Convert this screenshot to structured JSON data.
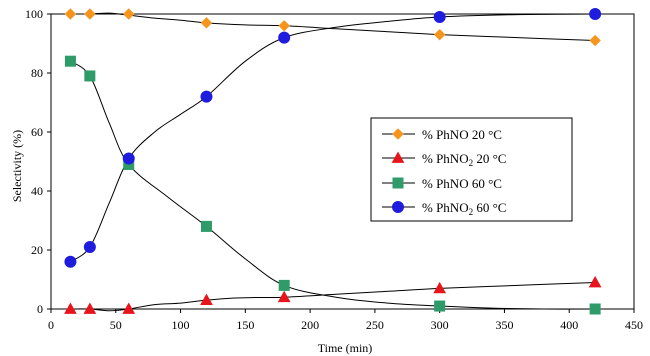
{
  "chart_data": {
    "type": "line",
    "title": "",
    "xlabel": "Time (min)",
    "ylabel": "Selectivity (%)",
    "xlim": [
      0,
      450
    ],
    "ylim": [
      0,
      100
    ],
    "xticks": [
      0,
      50,
      100,
      150,
      200,
      250,
      300,
      350,
      400,
      450
    ],
    "yticks": [
      0,
      20,
      40,
      60,
      80,
      100
    ],
    "grid": false,
    "legend": {
      "placement": "center-right",
      "entries": [
        {
          "prefix": "% PhNO",
          "sub": "",
          "suffix": " 20 °C"
        },
        {
          "prefix": "% PhNO",
          "sub": "2",
          "suffix": " 20 °C"
        },
        {
          "prefix": "% PhNO",
          "sub": "",
          "suffix": " 60 °C"
        },
        {
          "prefix": "% PhNO",
          "sub": "2",
          "suffix": " 60 °C"
        }
      ]
    },
    "series": [
      {
        "name": "% PhNO 20 °C",
        "marker": "diamond",
        "color": "#f7941d",
        "points": [
          [
            15,
            100
          ],
          [
            30,
            100
          ],
          [
            60,
            100
          ],
          [
            120,
            97
          ],
          [
            180,
            96
          ],
          [
            300,
            93
          ],
          [
            420,
            91
          ]
        ],
        "curve": [
          [
            15,
            100
          ],
          [
            30,
            100
          ],
          [
            45,
            100.3
          ],
          [
            60,
            99.6
          ],
          [
            80,
            98.6
          ],
          [
            100,
            97.9
          ],
          [
            120,
            97
          ],
          [
            150,
            96.3
          ],
          [
            180,
            96
          ],
          [
            220,
            95
          ],
          [
            260,
            94
          ],
          [
            300,
            93
          ],
          [
            360,
            92
          ],
          [
            420,
            91
          ]
        ]
      },
      {
        "name": "% PhNO2 20 °C",
        "marker": "triangle",
        "color": "#e8141c",
        "points": [
          [
            15,
            0
          ],
          [
            30,
            0
          ],
          [
            60,
            0
          ],
          [
            120,
            3
          ],
          [
            180,
            4
          ],
          [
            300,
            7
          ],
          [
            420,
            9
          ]
        ],
        "curve": [
          [
            15,
            0
          ],
          [
            30,
            0
          ],
          [
            45,
            -0.6
          ],
          [
            60,
            0
          ],
          [
            80,
            1.5
          ],
          [
            100,
            2
          ],
          [
            120,
            3
          ],
          [
            140,
            3.7
          ],
          [
            160,
            3.9
          ],
          [
            180,
            4
          ],
          [
            220,
            5
          ],
          [
            260,
            6
          ],
          [
            300,
            7
          ],
          [
            360,
            8
          ],
          [
            420,
            9
          ]
        ]
      },
      {
        "name": "% PhNO 60 °C",
        "marker": "square",
        "color": "#2e9b68",
        "points": [
          [
            15,
            84
          ],
          [
            30,
            79
          ],
          [
            60,
            49
          ],
          [
            120,
            28
          ],
          [
            180,
            8
          ],
          [
            300,
            1
          ],
          [
            420,
            0
          ]
        ],
        "curve": [
          [
            15,
            84
          ],
          [
            30,
            79
          ],
          [
            45,
            63
          ],
          [
            60,
            49
          ],
          [
            90,
            38
          ],
          [
            120,
            28
          ],
          [
            150,
            17
          ],
          [
            180,
            8
          ],
          [
            220,
            4
          ],
          [
            260,
            2
          ],
          [
            300,
            1
          ],
          [
            340,
            0.3
          ],
          [
            380,
            0
          ],
          [
            420,
            0
          ]
        ]
      },
      {
        "name": "% PhNO2 60 °C",
        "marker": "circle",
        "color": "#1f1ddd",
        "points": [
          [
            15,
            16
          ],
          [
            30,
            21
          ],
          [
            60,
            51
          ],
          [
            120,
            72
          ],
          [
            180,
            92
          ],
          [
            300,
            99
          ],
          [
            420,
            100
          ]
        ],
        "curve": [
          [
            15,
            16
          ],
          [
            30,
            21
          ],
          [
            45,
            36
          ],
          [
            60,
            51
          ],
          [
            80,
            60
          ],
          [
            100,
            66
          ],
          [
            120,
            72
          ],
          [
            150,
            84
          ],
          [
            180,
            92
          ],
          [
            220,
            95.5
          ],
          [
            260,
            97.5
          ],
          [
            300,
            99
          ],
          [
            360,
            99.8
          ],
          [
            420,
            100
          ]
        ]
      }
    ]
  }
}
